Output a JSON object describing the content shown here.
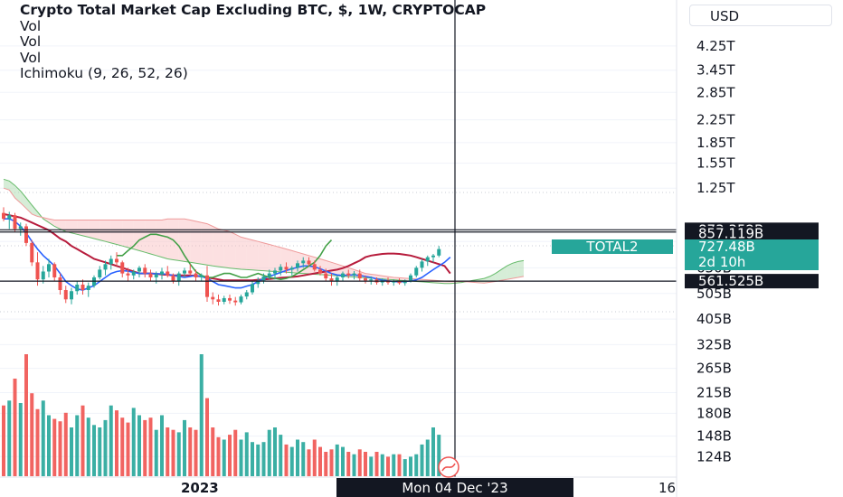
{
  "legend": {
    "title": "Crypto Total Market Cap Excluding BTC, $, 1W, CRYPTOCAP",
    "studies": [
      "Vol",
      "Vol",
      "Vol",
      "Ichimoku (9, 26, 52, 26)"
    ]
  },
  "currency_button": "USD",
  "colors": {
    "up": "#26a69a",
    "down": "#ef5350",
    "tenkan": "#2962ff",
    "kijun": "#b71c3c",
    "chikou": "#43a047",
    "cloud_bull": "#a5d6a7",
    "cloud_bear": "#f8bbbc",
    "cloud_bull_edge": "#66bb6a",
    "cloud_bear_edge": "#ef9a9a",
    "crosshair": "#131722"
  },
  "chart_data": {
    "type": "candlestick",
    "symbol": "TOTAL2",
    "interval": "1W",
    "price_axis": {
      "scale": "log",
      "range": [
        115,
        5000
      ],
      "ticks": [
        "4.25T",
        "3.45T",
        "2.85T",
        "2.25T",
        "1.85T",
        "1.55T",
        "1.25T",
        "790B",
        "630B",
        "505B",
        "405B",
        "325B",
        "265B",
        "215B",
        "180B",
        "148B",
        "124B"
      ]
    },
    "time_axis": {
      "labels": [
        "2023",
        "16"
      ]
    },
    "crosshair": {
      "date_label": "Mon 04 Dec '23",
      "price_label": "561.525B"
    },
    "price_labels": {
      "high_line": "873.352B",
      "low_line": "857.119B",
      "last": {
        "symbol": "TOTAL2",
        "value": "727.48B",
        "countdown": "2d 10h"
      }
    },
    "candles": [
      {
        "o": 1010,
        "h": 1060,
        "l": 940,
        "c": 960
      },
      {
        "o": 960,
        "h": 1020,
        "l": 880,
        "c": 990
      },
      {
        "o": 990,
        "h": 1010,
        "l": 860,
        "c": 880
      },
      {
        "o": 880,
        "h": 930,
        "l": 830,
        "c": 900
      },
      {
        "o": 900,
        "h": 920,
        "l": 760,
        "c": 780
      },
      {
        "o": 780,
        "h": 800,
        "l": 640,
        "c": 660
      },
      {
        "o": 660,
        "h": 720,
        "l": 540,
        "c": 570
      },
      {
        "o": 570,
        "h": 640,
        "l": 550,
        "c": 610
      },
      {
        "o": 610,
        "h": 680,
        "l": 580,
        "c": 650
      },
      {
        "o": 650,
        "h": 660,
        "l": 560,
        "c": 580
      },
      {
        "o": 580,
        "h": 600,
        "l": 500,
        "c": 520
      },
      {
        "o": 520,
        "h": 540,
        "l": 465,
        "c": 480
      },
      {
        "o": 480,
        "h": 530,
        "l": 460,
        "c": 515
      },
      {
        "o": 515,
        "h": 560,
        "l": 500,
        "c": 545
      },
      {
        "o": 545,
        "h": 570,
        "l": 500,
        "c": 520
      },
      {
        "o": 520,
        "h": 555,
        "l": 490,
        "c": 540
      },
      {
        "o": 540,
        "h": 590,
        "l": 530,
        "c": 580
      },
      {
        "o": 580,
        "h": 640,
        "l": 570,
        "c": 620
      },
      {
        "o": 620,
        "h": 670,
        "l": 590,
        "c": 650
      },
      {
        "o": 650,
        "h": 700,
        "l": 620,
        "c": 680
      },
      {
        "o": 680,
        "h": 720,
        "l": 640,
        "c": 660
      },
      {
        "o": 660,
        "h": 670,
        "l": 580,
        "c": 600
      },
      {
        "o": 600,
        "h": 630,
        "l": 560,
        "c": 590
      },
      {
        "o": 590,
        "h": 620,
        "l": 570,
        "c": 610
      },
      {
        "o": 610,
        "h": 640,
        "l": 580,
        "c": 630
      },
      {
        "o": 630,
        "h": 650,
        "l": 580,
        "c": 600
      },
      {
        "o": 600,
        "h": 620,
        "l": 560,
        "c": 580
      },
      {
        "o": 580,
        "h": 610,
        "l": 550,
        "c": 595
      },
      {
        "o": 595,
        "h": 630,
        "l": 570,
        "c": 610
      },
      {
        "o": 610,
        "h": 640,
        "l": 580,
        "c": 590
      },
      {
        "o": 590,
        "h": 600,
        "l": 550,
        "c": 560
      },
      {
        "o": 560,
        "h": 610,
        "l": 540,
        "c": 600
      },
      {
        "o": 600,
        "h": 630,
        "l": 580,
        "c": 615
      },
      {
        "o": 615,
        "h": 650,
        "l": 590,
        "c": 600
      },
      {
        "o": 600,
        "h": 620,
        "l": 560,
        "c": 580
      },
      {
        "o": 580,
        "h": 600,
        "l": 560,
        "c": 590
      },
      {
        "o": 590,
        "h": 640,
        "l": 470,
        "c": 490
      },
      {
        "o": 490,
        "h": 510,
        "l": 460,
        "c": 480
      },
      {
        "o": 480,
        "h": 500,
        "l": 455,
        "c": 470
      },
      {
        "o": 470,
        "h": 495,
        "l": 460,
        "c": 485
      },
      {
        "o": 485,
        "h": 500,
        "l": 462,
        "c": 475
      },
      {
        "o": 475,
        "h": 490,
        "l": 455,
        "c": 468
      },
      {
        "o": 468,
        "h": 500,
        "l": 460,
        "c": 492
      },
      {
        "o": 492,
        "h": 520,
        "l": 480,
        "c": 510
      },
      {
        "o": 510,
        "h": 560,
        "l": 500,
        "c": 548
      },
      {
        "o": 548,
        "h": 580,
        "l": 530,
        "c": 565
      },
      {
        "o": 565,
        "h": 600,
        "l": 550,
        "c": 585
      },
      {
        "o": 585,
        "h": 620,
        "l": 570,
        "c": 600
      },
      {
        "o": 600,
        "h": 630,
        "l": 570,
        "c": 615
      },
      {
        "o": 615,
        "h": 650,
        "l": 590,
        "c": 635
      },
      {
        "o": 635,
        "h": 660,
        "l": 600,
        "c": 620
      },
      {
        "o": 620,
        "h": 640,
        "l": 590,
        "c": 630
      },
      {
        "o": 630,
        "h": 670,
        "l": 610,
        "c": 655
      },
      {
        "o": 655,
        "h": 690,
        "l": 630,
        "c": 670
      },
      {
        "o": 670,
        "h": 690,
        "l": 640,
        "c": 650
      },
      {
        "o": 650,
        "h": 670,
        "l": 610,
        "c": 620
      },
      {
        "o": 620,
        "h": 640,
        "l": 590,
        "c": 600
      },
      {
        "o": 600,
        "h": 625,
        "l": 560,
        "c": 575
      },
      {
        "o": 575,
        "h": 600,
        "l": 540,
        "c": 560
      },
      {
        "o": 560,
        "h": 590,
        "l": 540,
        "c": 580
      },
      {
        "o": 580,
        "h": 610,
        "l": 560,
        "c": 600
      },
      {
        "o": 600,
        "h": 620,
        "l": 575,
        "c": 590
      },
      {
        "o": 590,
        "h": 612,
        "l": 570,
        "c": 600
      },
      {
        "o": 600,
        "h": 620,
        "l": 560,
        "c": 575
      },
      {
        "o": 575,
        "h": 590,
        "l": 550,
        "c": 565
      },
      {
        "o": 565,
        "h": 585,
        "l": 545,
        "c": 570
      },
      {
        "o": 570,
        "h": 580,
        "l": 545,
        "c": 555
      },
      {
        "o": 555,
        "h": 575,
        "l": 540,
        "c": 565
      },
      {
        "o": 565,
        "h": 580,
        "l": 545,
        "c": 555
      },
      {
        "o": 555,
        "h": 570,
        "l": 540,
        "c": 560
      },
      {
        "o": 560,
        "h": 575,
        "l": 545,
        "c": 552
      },
      {
        "o": 552,
        "h": 570,
        "l": 540,
        "c": 565
      },
      {
        "o": 565,
        "h": 600,
        "l": 555,
        "c": 590
      },
      {
        "o": 590,
        "h": 640,
        "l": 580,
        "c": 630
      },
      {
        "o": 630,
        "h": 680,
        "l": 610,
        "c": 665
      },
      {
        "o": 665,
        "h": 700,
        "l": 640,
        "c": 690
      },
      {
        "o": 690,
        "h": 710,
        "l": 660,
        "c": 700
      },
      {
        "o": 700,
        "h": 760,
        "l": 690,
        "c": 740
      }
    ],
    "volume": {
      "max": 100,
      "values": [
        58,
        62,
        80,
        60,
        100,
        68,
        55,
        62,
        50,
        47,
        45,
        52,
        40,
        50,
        58,
        48,
        42,
        40,
        46,
        58,
        54,
        48,
        44,
        56,
        50,
        46,
        48,
        38,
        50,
        40,
        38,
        36,
        46,
        40,
        38,
        100,
        64,
        40,
        32,
        30,
        34,
        38,
        30,
        36,
        28,
        26,
        28,
        38,
        40,
        34,
        26,
        24,
        30,
        28,
        22,
        30,
        24,
        20,
        22,
        26,
        24,
        20,
        18,
        22,
        20,
        16,
        20,
        18,
        16,
        18,
        18,
        14,
        16,
        18,
        26,
        30,
        40,
        34,
        38,
        50
      ]
    },
    "ichimoku": {
      "tenkan": [
        960,
        960,
        940,
        900,
        850,
        790,
        740,
        700,
        670,
        640,
        600,
        560,
        540,
        525,
        520,
        530,
        540,
        560,
        580,
        600,
        610,
        615,
        612,
        605,
        600,
        600,
        600,
        598,
        598,
        595,
        590,
        585,
        580,
        585,
        590,
        585,
        575,
        560,
        545,
        540,
        535,
        530,
        530,
        538,
        545,
        560,
        575,
        585,
        595,
        605,
        615,
        625,
        632,
        640,
        640,
        635,
        625,
        612,
        600,
        592,
        590,
        592,
        592,
        590,
        585,
        580,
        572,
        567,
        563,
        560,
        558,
        560,
        562,
        568,
        580,
        600,
        620,
        640,
        660,
        690
      ],
      "kijun": [
        1000,
        990,
        980,
        970,
        950,
        930,
        910,
        890,
        870,
        840,
        810,
        790,
        760,
        740,
        720,
        700,
        680,
        670,
        660,
        650,
        640,
        630,
        620,
        610,
        600,
        600,
        600,
        598,
        595,
        593,
        590,
        590,
        590,
        590,
        588,
        585,
        580,
        575,
        570,
        565,
        565,
        565,
        565,
        565,
        565,
        568,
        570,
        572,
        575,
        578,
        580,
        582,
        585,
        590,
        595,
        600,
        605,
        610,
        615,
        620,
        628,
        640,
        655,
        670,
        690,
        700,
        705,
        710,
        712,
        712,
        710,
        705,
        700,
        690,
        680,
        670,
        660,
        650,
        640,
        600
      ],
      "chikou": [
        700,
        700,
        730,
        760,
        800,
        820,
        840,
        840,
        830,
        820,
        800,
        760,
        700,
        650,
        610,
        590,
        580,
        580,
        590,
        600,
        600,
        590,
        580,
        580,
        590,
        600,
        590,
        580,
        575,
        570,
        575,
        585,
        600,
        620,
        640,
        660,
        700,
        760,
        800
      ]
    },
    "cloud": {
      "span_a": [
        1350,
        1330,
        1280,
        1220,
        1150,
        1080,
        1020,
        960,
        930,
        900,
        880,
        860,
        850,
        840,
        830,
        820,
        810,
        800,
        790,
        780,
        770,
        760,
        750,
        740,
        730,
        720,
        710,
        700,
        690,
        680,
        675,
        670,
        665,
        660,
        655,
        650,
        645,
        640,
        636,
        632,
        628,
        625,
        622,
        620,
        618,
        616,
        614,
        612,
        610,
        608,
        606,
        604,
        602,
        600,
        598,
        596,
        594,
        592,
        590,
        588,
        586,
        584,
        582,
        580,
        578,
        576,
        574,
        572,
        570,
        568,
        566,
        564,
        562,
        560,
        558,
        556,
        554,
        552,
        550,
        550,
        552,
        555,
        560,
        565,
        570,
        575,
        585,
        600,
        620,
        640,
        655,
        665,
        670
      ],
      "span_b": [
        1250,
        1230,
        1150,
        1100,
        1050,
        1000,
        980,
        970,
        960,
        950,
        950,
        950,
        950,
        950,
        950,
        950,
        950,
        950,
        950,
        950,
        950,
        950,
        950,
        950,
        950,
        950,
        950,
        950,
        950,
        960,
        960,
        960,
        960,
        950,
        940,
        930,
        920,
        900,
        880,
        870,
        860,
        840,
        820,
        810,
        800,
        790,
        780,
        770,
        760,
        750,
        740,
        730,
        720,
        710,
        700,
        690,
        680,
        670,
        660,
        650,
        640,
        630,
        620,
        610,
        600,
        596,
        592,
        588,
        584,
        580,
        578,
        576,
        574,
        572,
        570,
        568,
        566,
        564,
        562,
        560,
        560,
        560,
        558,
        556,
        554,
        552,
        556,
        560,
        565,
        570,
        575,
        580,
        585
      ]
    }
  }
}
